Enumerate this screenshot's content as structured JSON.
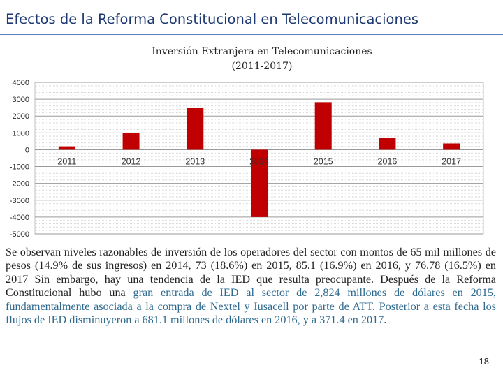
{
  "slide": {
    "title": "Efectos de la Reforma Constitucional en Telecomunicaciones",
    "page_number": "18"
  },
  "chart_data": {
    "type": "bar",
    "title": "Inversión Extranjera en Telecomunicaciones",
    "subtitle": "(2011-2017)",
    "categories": [
      "2011",
      "2012",
      "2013",
      "2014",
      "2015",
      "2016",
      "2017"
    ],
    "values": [
      200,
      1000,
      2500,
      -4000,
      2824,
      681.1,
      371.4
    ],
    "ylim": [
      -5000,
      4000
    ],
    "yticks": [
      "4000",
      "3000",
      "2000",
      "1000",
      "0",
      "-1000",
      "-2000",
      "-3000",
      "-4000",
      "-5000"
    ],
    "grid": true,
    "bar_color": "#c00000"
  },
  "body": {
    "text_plain": "Se observan niveles razonables de inversión de los operadores del sector con montos de 65 mil millones de pesos (14.9% de sus ingresos) en 2014, 73 (18.6%) en 2015, 85.1 (16.9%) en 2016, y 76.78 (16.5%) en 2017 Sin embargo, hay una tendencia de la IED que resulta preocupante. Después de la Reforma Constitucional hubo una ",
    "text_highlight": "gran entrada de IED al sector de 2,824 millones de dólares en 2015, fundamentalmente asociada a la compra de Nextel y Iusacell por parte de ATT. Posterior a esta fecha los flujos de IED disminuyeron a 681.1 millones de dólares en 2016, y a 371.4 en 2017",
    "text_end": "."
  }
}
